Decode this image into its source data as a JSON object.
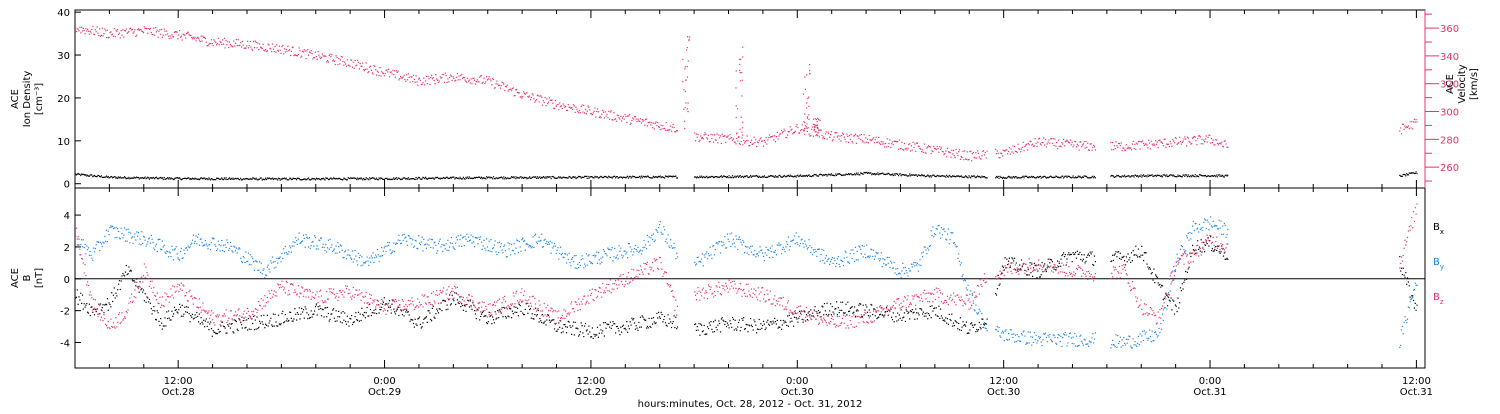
{
  "xaxis": {
    "label": "hours:minutes, Oct. 28, 2012 - Oct. 31, 2012",
    "range_hours": [
      6,
      84.5
    ],
    "ticks": [
      {
        "h": 12,
        "time": "12:00",
        "date": "Oct.28"
      },
      {
        "h": 24,
        "time": "0:00",
        "date": "Oct.29"
      },
      {
        "h": 36,
        "time": "12:00",
        "date": "Oct.29"
      },
      {
        "h": 48,
        "time": "0:00",
        "date": "Oct.30"
      },
      {
        "h": 60,
        "time": "12:00",
        "date": "Oct.30"
      },
      {
        "h": 72,
        "time": "0:00",
        "date": "Oct.31"
      },
      {
        "h": 84,
        "time": "12:00",
        "date": "Oct.31"
      }
    ]
  },
  "colors": {
    "black": "#000000",
    "pink": "#e8336a",
    "blue": "#1a87e8"
  },
  "chart_data": [
    {
      "type": "scatter",
      "panel": "top",
      "ylabel_lines": [
        "ACE",
        "Ion Density",
        "[cm⁻³]"
      ],
      "ylim": [
        -1,
        40.5
      ],
      "yticks": [
        0,
        10,
        20,
        30,
        40
      ],
      "y2label_lines": [
        "ACE",
        "Velocity",
        "[km/s]"
      ],
      "y2lim": [
        245,
        373
      ],
      "y2ticks": [
        260,
        280,
        300,
        320,
        340,
        360
      ],
      "series": [
        {
          "color": "black",
          "axis": "left",
          "segments": [
            [
              6.0,
              41.0
            ],
            [
              42.0,
              59.0
            ],
            [
              59.5,
              65.3
            ],
            [
              66.2,
              73.0
            ],
            [
              83.0,
              84.0
            ]
          ],
          "points": [
            [
              6,
              2.2
            ],
            [
              8,
              1.5
            ],
            [
              12,
              1.2
            ],
            [
              18,
              1.1
            ],
            [
              24,
              1.2
            ],
            [
              30,
              1.4
            ],
            [
              36,
              1.5
            ],
            [
              41,
              1.6
            ],
            [
              42,
              1.6
            ],
            [
              48,
              1.8
            ],
            [
              52,
              2.4
            ],
            [
              56,
              1.8
            ],
            [
              60,
              1.5
            ],
            [
              65,
              1.6
            ],
            [
              67,
              1.8
            ],
            [
              70,
              1.9
            ],
            [
              72,
              1.9
            ],
            [
              73,
              1.8
            ],
            [
              83,
              1.8
            ],
            [
              84,
              2.6
            ]
          ]
        },
        {
          "color": "pink",
          "axis": "right",
          "segments": [
            [
              6.0,
              41.0
            ],
            [
              42.0,
              59.0
            ],
            [
              59.5,
              65.3
            ],
            [
              66.2,
              73.0
            ],
            [
              83.0,
              84.0
            ]
          ],
          "points": [
            [
              6,
              360
            ],
            [
              8,
              356
            ],
            [
              10,
              358
            ],
            [
              12,
              355
            ],
            [
              14,
              350
            ],
            [
              16,
              348
            ],
            [
              18,
              345
            ],
            [
              20,
              340
            ],
            [
              22,
              335
            ],
            [
              24,
              328
            ],
            [
              26,
              322
            ],
            [
              28,
              325
            ],
            [
              30,
              322
            ],
            [
              32,
              312
            ],
            [
              34,
              305
            ],
            [
              36,
              300
            ],
            [
              38,
              295
            ],
            [
              40,
              290
            ],
            [
              41,
              288
            ],
            [
              42,
              282
            ],
            [
              44,
              280
            ],
            [
              46,
              278
            ],
            [
              48,
              288
            ],
            [
              50,
              282
            ],
            [
              52,
              280
            ],
            [
              54,
              276
            ],
            [
              56,
              272
            ],
            [
              58,
              268
            ],
            [
              60,
              270
            ],
            [
              62,
              278
            ],
            [
              64,
              276
            ],
            [
              65,
              275
            ],
            [
              67,
              275
            ],
            [
              70,
              278
            ],
            [
              72,
              280
            ],
            [
              73,
              275
            ],
            [
              83,
              287
            ],
            [
              84,
              292
            ]
          ],
          "spikes": [
            [
              41.5,
              358
            ],
            [
              44.6,
              347
            ],
            [
              48.5,
              335
            ],
            [
              49.1,
              296
            ]
          ]
        }
      ]
    },
    {
      "type": "scatter",
      "panel": "bottom",
      "ylabel_lines": [
        "ACE",
        "B",
        "[nT]"
      ],
      "ylim": [
        -5.6,
        5.7
      ],
      "yticks": [
        -4,
        -2,
        0,
        2,
        4
      ],
      "zero_line": true,
      "series": [
        {
          "name": "Bx",
          "color": "black",
          "segments": [
            [
              6.0,
              41.0
            ],
            [
              42.0,
              59.0
            ],
            [
              59.5,
              65.3
            ],
            [
              66.2,
              73.0
            ],
            [
              83.0,
              84.0
            ]
          ],
          "points": [
            [
              6,
              -1.0
            ],
            [
              7,
              -2.0
            ],
            [
              8,
              -1.5
            ],
            [
              9,
              0.5
            ],
            [
              10,
              -1.0
            ],
            [
              11,
              -2.8
            ],
            [
              12,
              -1.8
            ],
            [
              14,
              -3.2
            ],
            [
              16,
              -2.8
            ],
            [
              18,
              -2.5
            ],
            [
              20,
              -2.0
            ],
            [
              22,
              -2.6
            ],
            [
              24,
              -1.5
            ],
            [
              26,
              -2.8
            ],
            [
              28,
              -1.2
            ],
            [
              30,
              -2.5
            ],
            [
              32,
              -1.8
            ],
            [
              34,
              -3.0
            ],
            [
              36,
              -3.3
            ],
            [
              38,
              -3.0
            ],
            [
              40,
              -2.5
            ],
            [
              41,
              -2.8
            ],
            [
              42,
              -3.2
            ],
            [
              44,
              -2.8
            ],
            [
              46,
              -3.0
            ],
            [
              48,
              -2.5
            ],
            [
              50,
              -1.8
            ],
            [
              52,
              -2.0
            ],
            [
              54,
              -2.3
            ],
            [
              56,
              -2.0
            ],
            [
              58,
              -3.2
            ],
            [
              59,
              -2.5
            ],
            [
              60,
              1.0
            ],
            [
              62,
              0.5
            ],
            [
              64,
              1.5
            ],
            [
              65,
              1.3
            ],
            [
              67,
              1.3
            ],
            [
              68,
              1.8
            ],
            [
              69,
              -0.5
            ],
            [
              70,
              -2.0
            ],
            [
              71,
              2.0
            ],
            [
              72,
              2.2
            ],
            [
              73,
              1.5
            ],
            [
              83,
              1.0
            ],
            [
              84,
              -2.0
            ]
          ]
        },
        {
          "name": "By",
          "color": "blue",
          "segments": [
            [
              6.0,
              41.0
            ],
            [
              42.0,
              59.0
            ],
            [
              59.5,
              65.3
            ],
            [
              66.2,
              73.0
            ],
            [
              83.0,
              84.0
            ]
          ],
          "points": [
            [
              6,
              2.5
            ],
            [
              7,
              1.5
            ],
            [
              8,
              3.0
            ],
            [
              10,
              2.5
            ],
            [
              12,
              1.5
            ],
            [
              13,
              2.5
            ],
            [
              15,
              2.0
            ],
            [
              17,
              0.5
            ],
            [
              19,
              2.5
            ],
            [
              21,
              2.0
            ],
            [
              23,
              1.0
            ],
            [
              25,
              2.5
            ],
            [
              27,
              2.0
            ],
            [
              29,
              2.5
            ],
            [
              31,
              1.8
            ],
            [
              33,
              2.5
            ],
            [
              35,
              1.0
            ],
            [
              37,
              1.5
            ],
            [
              39,
              2.0
            ],
            [
              40,
              3.2
            ],
            [
              41,
              1.5
            ],
            [
              42,
              0.8
            ],
            [
              44,
              2.5
            ],
            [
              46,
              1.5
            ],
            [
              48,
              2.5
            ],
            [
              50,
              1.0
            ],
            [
              52,
              1.8
            ],
            [
              54,
              0.5
            ],
            [
              55,
              0.8
            ],
            [
              56,
              3.2
            ],
            [
              57,
              2.5
            ],
            [
              58,
              -1.0
            ],
            [
              59,
              -3.2
            ],
            [
              60,
              -3.5
            ],
            [
              62,
              -3.8
            ],
            [
              63,
              -3.8
            ],
            [
              65,
              -3.8
            ],
            [
              67,
              -4.0
            ],
            [
              69,
              -3.5
            ],
            [
              70,
              1.0
            ],
            [
              71,
              3.2
            ],
            [
              72,
              3.5
            ],
            [
              73,
              3.0
            ],
            [
              83,
              -4.0
            ],
            [
              84,
              0.0
            ]
          ]
        },
        {
          "name": "Bz",
          "color": "pink",
          "segments": [
            [
              6.0,
              41.0
            ],
            [
              42.0,
              59.0
            ],
            [
              59.5,
              65.3
            ],
            [
              66.2,
              73.0
            ],
            [
              83.0,
              84.0
            ]
          ],
          "points": [
            [
              6,
              3.0
            ],
            [
              7,
              -1.5
            ],
            [
              8,
              -3.0
            ],
            [
              9,
              -2.0
            ],
            [
              10,
              0.5
            ],
            [
              11,
              -1.5
            ],
            [
              12,
              -0.5
            ],
            [
              14,
              -2.5
            ],
            [
              16,
              -2.2
            ],
            [
              18,
              -0.5
            ],
            [
              20,
              -1.2
            ],
            [
              22,
              -0.8
            ],
            [
              24,
              -1.8
            ],
            [
              26,
              -1.5
            ],
            [
              28,
              -0.8
            ],
            [
              30,
              -2.0
            ],
            [
              32,
              -1.0
            ],
            [
              34,
              -2.5
            ],
            [
              36,
              -1.0
            ],
            [
              38,
              0.0
            ],
            [
              40,
              1.0
            ],
            [
              41,
              -2.0
            ],
            [
              42,
              -1.0
            ],
            [
              44,
              -0.5
            ],
            [
              46,
              -1.0
            ],
            [
              48,
              -2.0
            ],
            [
              50,
              -2.8
            ],
            [
              52,
              -2.5
            ],
            [
              54,
              -1.5
            ],
            [
              56,
              -1.0
            ],
            [
              58,
              -1.5
            ],
            [
              59,
              0.2
            ],
            [
              60,
              0.5
            ],
            [
              62,
              1.0
            ],
            [
              64,
              0.5
            ],
            [
              65,
              0.3
            ],
            [
              67,
              0.5
            ],
            [
              68,
              -1.8
            ],
            [
              69,
              -2.5
            ],
            [
              70,
              1.0
            ],
            [
              71,
              1.5
            ],
            [
              72,
              2.5
            ],
            [
              73,
              2.0
            ],
            [
              83,
              1.0
            ],
            [
              84,
              4.5
            ]
          ]
        }
      ],
      "legend": [
        {
          "label": "B",
          "sub": "x",
          "color": "black"
        },
        {
          "label": "B",
          "sub": "y",
          "color": "blue"
        },
        {
          "label": "B",
          "sub": "z",
          "color": "pink"
        }
      ]
    }
  ]
}
